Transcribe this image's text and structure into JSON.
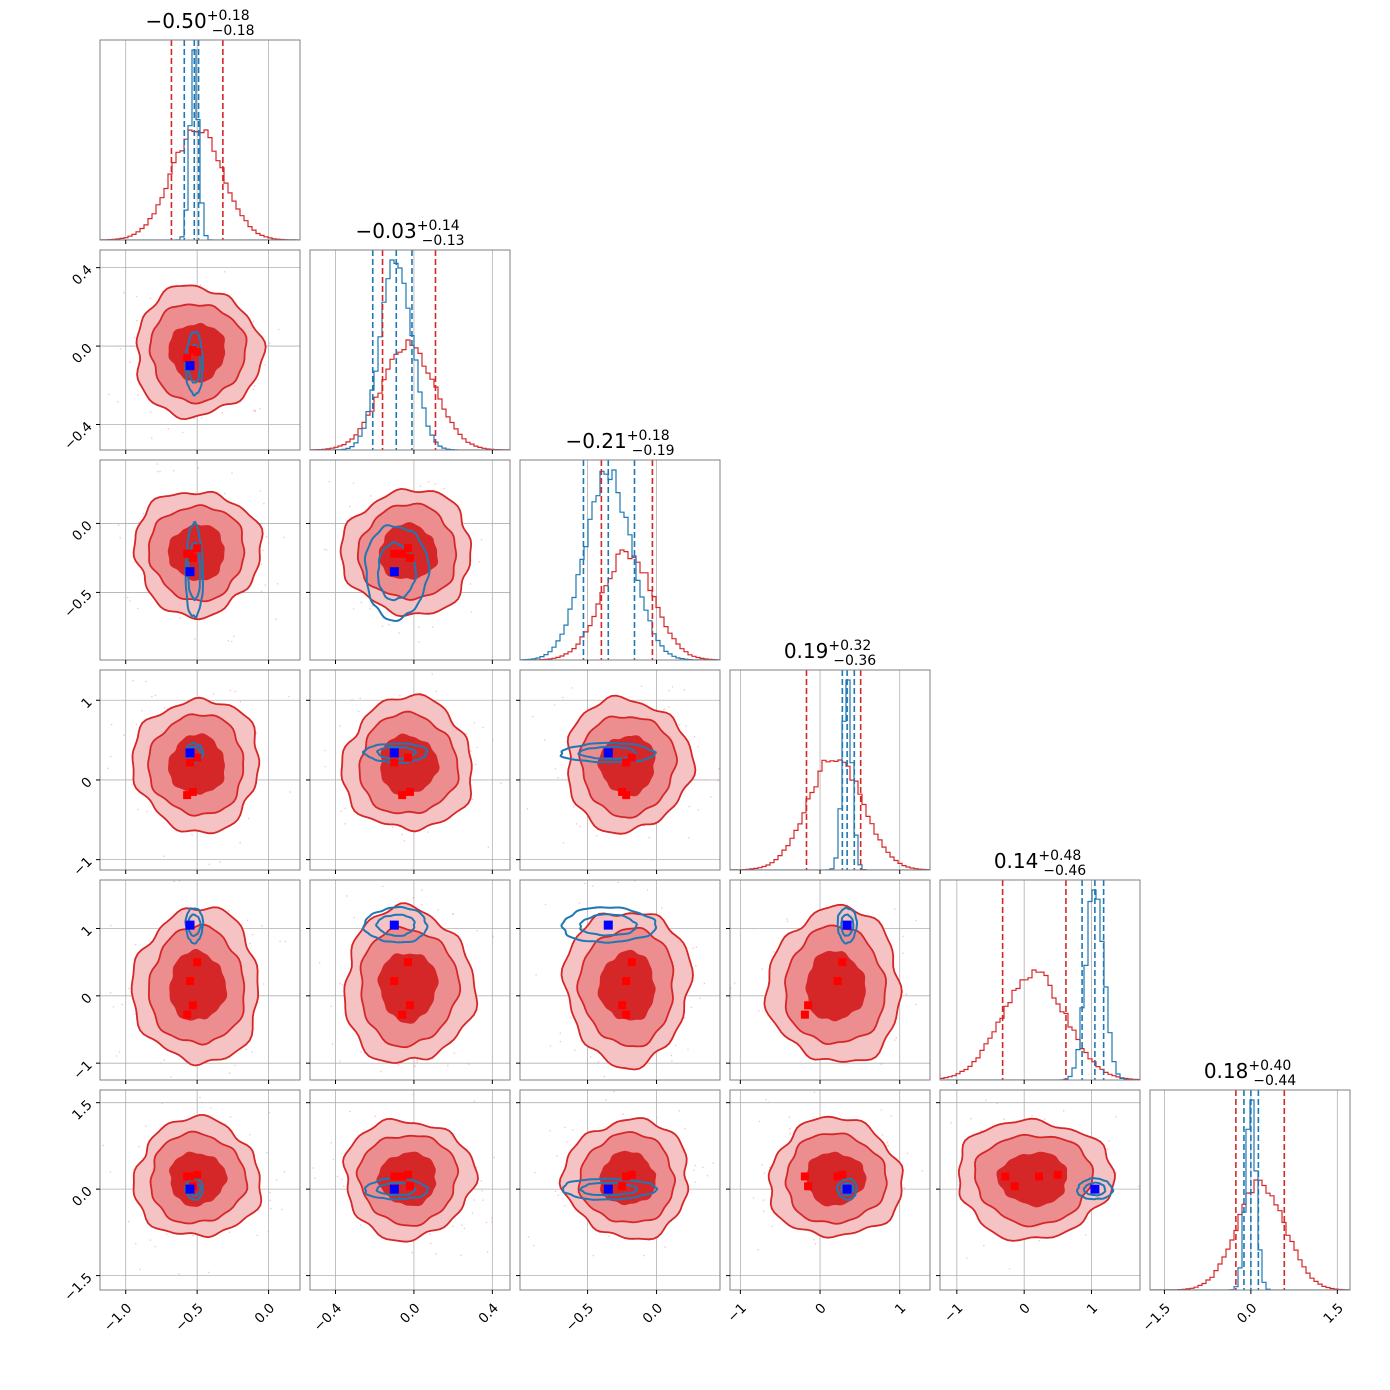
{
  "chart_data": {
    "type": "corner",
    "n_params": 6,
    "titles": [
      {
        "median": "−0.50",
        "plus": "+0.18",
        "minus": "−0.18"
      },
      {
        "median": "−0.03",
        "plus": "+0.14",
        "minus": "−0.13"
      },
      {
        "median": "−0.21",
        "plus": "+0.18",
        "minus": "−0.19"
      },
      {
        "median": "0.19",
        "plus": "+0.32",
        "minus": "−0.36"
      },
      {
        "median": "0.14",
        "plus": "+0.48",
        "minus": "−0.46"
      },
      {
        "median": "0.18",
        "plus": "+0.40",
        "minus": "−0.44"
      }
    ],
    "ranges": [
      [
        -1.18,
        0.22
      ],
      [
        -0.53,
        0.49
      ],
      [
        -0.99,
        0.46
      ],
      [
        -1.13,
        1.38
      ],
      [
        -1.25,
        1.72
      ],
      [
        -1.75,
        1.72
      ]
    ],
    "ticks": [
      {
        "values": [
          -1.0,
          -0.5,
          0.0
        ],
        "labels": [
          "−1.0",
          "−0.5",
          "0.0"
        ]
      },
      {
        "values": [
          -0.4,
          0.0,
          0.4
        ],
        "labels": [
          "−0.4",
          "0.0",
          "0.4"
        ]
      },
      {
        "values": [
          -0.5,
          0.0
        ],
        "labels": [
          "−0.5",
          "0.0"
        ]
      },
      {
        "values": [
          -1,
          0,
          1
        ],
        "labels": [
          "−1",
          "0",
          "1"
        ]
      },
      {
        "values": [
          -1,
          0,
          1
        ],
        "labels": [
          "−1",
          "0",
          "1"
        ]
      },
      {
        "values": [
          -1.5,
          0.0,
          1.5
        ],
        "labels": [
          "−1.5",
          "0.0",
          "1.5"
        ]
      }
    ],
    "grid": true,
    "series": [
      {
        "color": "#d62728",
        "fill_colors": [
          "#f5c3c4",
          "#ec8e90",
          "#d62728"
        ],
        "median": [
          -0.5,
          -0.03,
          -0.21,
          0.19,
          0.14,
          0.18
        ],
        "sigma": [
          0.18,
          0.135,
          0.185,
          0.34,
          0.47,
          0.42
        ],
        "quantile_lines": [
          [
            -0.68,
            -0.32
          ],
          [
            -0.16,
            0.11
          ],
          [
            -0.4,
            -0.03
          ],
          [
            -0.17,
            0.51
          ],
          [
            -0.32,
            0.62
          ],
          [
            -0.26,
            0.58
          ]
        ]
      },
      {
        "color": "#1f77b4",
        "median": [
          -0.52,
          -0.09,
          -0.35,
          0.34,
          1.05,
          0.0
        ],
        "sigma": [
          0.03,
          0.08,
          0.17,
          0.06,
          0.13,
          0.09
        ],
        "quantile_lines": [
          [
            -0.59,
            -0.49
          ],
          [
            -0.21,
            -0.01
          ],
          [
            -0.53,
            -0.16
          ],
          [
            0.28,
            0.43
          ],
          [
            0.86,
            1.18
          ],
          [
            -0.12,
            0.13
          ]
        ]
      }
    ],
    "truth_markers": [
      {
        "color": "#0000ff",
        "values": [
          -0.55,
          -0.1,
          -0.35,
          0.34,
          1.05,
          0.0
        ]
      },
      {
        "color": "#ff0000",
        "sets": [
          [
            -0.55,
            -0.1,
            -0.22,
            0.22,
            0.22,
            0.22
          ],
          [
            -0.5,
            -0.03,
            -0.18,
            0.28,
            0.5,
            0.25
          ],
          [
            -0.53,
            -0.02,
            -0.25,
            -0.15,
            -0.14,
            0.05
          ],
          [
            -0.57,
            -0.06,
            -0.22,
            -0.19,
            -0.28,
            0.22
          ]
        ]
      }
    ]
  }
}
